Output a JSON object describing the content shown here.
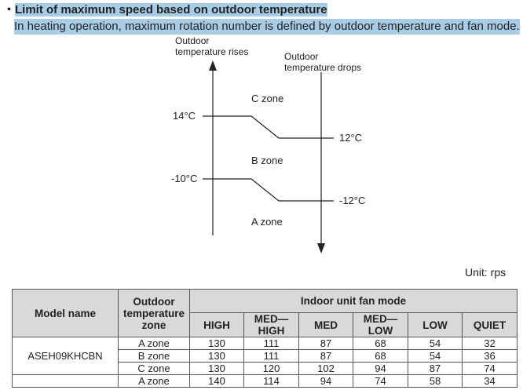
{
  "header": {
    "bullet": "・",
    "title": "Limit of maximum speed based on outdoor temperature",
    "description": "In heating operation, maximum rotation number is defined by outdoor temperature and fan mode."
  },
  "diagram": {
    "rises_label": [
      "Outdoor",
      "temperature rises"
    ],
    "drops_label": [
      "Outdoor",
      "temperature drops"
    ],
    "upper_rise": "14°C",
    "upper_drop": "12°C",
    "lower_rise": "-10°C",
    "lower_drop": "-12°C",
    "zones": [
      "C zone",
      "B zone",
      "A zone"
    ]
  },
  "unit": "Unit: rps",
  "table": {
    "model_header": "Model name",
    "zone_header": [
      "Outdoor",
      "temperature",
      "zone"
    ],
    "fan_header": "Indoor unit fan mode",
    "fan_modes": [
      [
        "HIGH"
      ],
      [
        "MED—",
        "HIGH"
      ],
      [
        "MED"
      ],
      [
        "MED—",
        "LOW"
      ],
      [
        "LOW"
      ],
      [
        "QUIET"
      ]
    ],
    "models": [
      {
        "name": "ASEH09KHCBN",
        "rows": [
          {
            "zone": "A zone",
            "values": [
              "130",
              "111",
              "87",
              "68",
              "54",
              "32"
            ]
          },
          {
            "zone": "B zone",
            "values": [
              "130",
              "111",
              "87",
              "68",
              "54",
              "36"
            ]
          },
          {
            "zone": "C zone",
            "values": [
              "130",
              "120",
              "102",
              "94",
              "87",
              "74"
            ]
          }
        ]
      },
      {
        "rows": [
          {
            "zone": "A zone",
            "values": [
              "140",
              "114",
              "94",
              "74",
              "58",
              "34"
            ]
          }
        ]
      }
    ]
  }
}
